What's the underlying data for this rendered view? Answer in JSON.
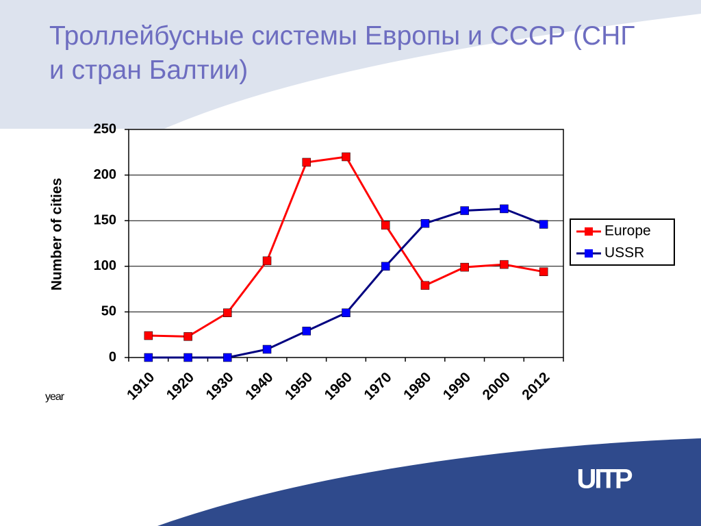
{
  "chart_data": {
    "type": "line",
    "title": "Троллейбусные системы Европы и СССР (СНГ и стран Балтии)",
    "y_label": "Number of  cities",
    "x_label": "year",
    "categories": [
      "1910",
      "1920",
      "1930",
      "1940",
      "1950",
      "1960",
      "1970",
      "1980",
      "1990",
      "2000",
      "2012"
    ],
    "series": [
      {
        "name": "Europe",
        "color": "#ff0000",
        "marker_color": "#ff0000",
        "values": [
          24,
          23,
          49,
          106,
          214,
          220,
          145,
          79,
          99,
          102,
          94
        ]
      },
      {
        "name": "USSR",
        "color": "#000080",
        "marker_color": "#0000ff",
        "values": [
          0,
          0,
          0,
          9,
          29,
          49,
          100,
          147,
          161,
          163,
          146
        ]
      }
    ],
    "ylim": [
      0,
      250
    ],
    "yticks": [
      0,
      50,
      100,
      150,
      200,
      250
    ],
    "grid": true,
    "legend": "right"
  },
  "logo": "UITP"
}
